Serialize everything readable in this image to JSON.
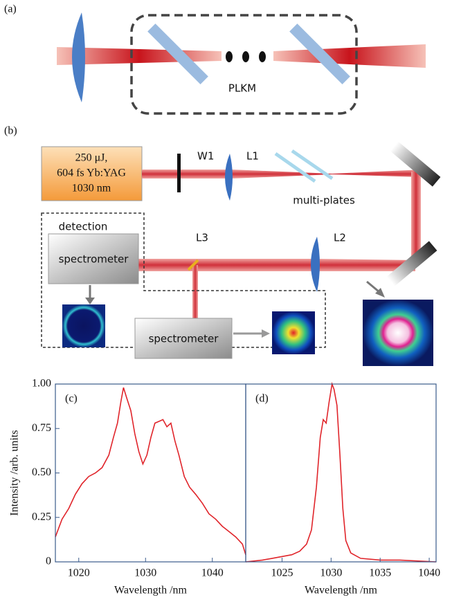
{
  "panel_a": {
    "label": "(a)",
    "box_label": "PLKM"
  },
  "panel_b": {
    "label": "(b)",
    "source": [
      "250 μJ,",
      "604 fs Yb:YAG",
      "1030 nm"
    ],
    "w1": "W1",
    "l1": "L1",
    "l2": "L2",
    "l3": "L3",
    "plates": "multi-plates",
    "detection": "detection",
    "spectrometers": [
      "spectrometer",
      "spectrometer"
    ]
  },
  "chart_data": [
    {
      "type": "line",
      "label": "(c)",
      "xlabel": "Wavelength /nm",
      "ylabel": "Intensity /arb. units",
      "x": [
        1016.5,
        1017.5,
        1018.5,
        1019.5,
        1020.5,
        1021.5,
        1022.5,
        1023.5,
        1024.5,
        1025.2,
        1025.8,
        1026.3,
        1026.7,
        1027.2,
        1027.8,
        1028.4,
        1029,
        1029.6,
        1030.2,
        1030.8,
        1031.4,
        1032,
        1032.6,
        1033.2,
        1033.8,
        1034.4,
        1035,
        1035.8,
        1036.6,
        1037.5,
        1038.5,
        1039.5,
        1040.5,
        1041.5,
        1042.5,
        1043.5,
        1044.5,
        1045
      ],
      "series": [
        {
          "color": "#e0242a",
          "values": [
            0.14,
            0.24,
            0.3,
            0.38,
            0.44,
            0.48,
            0.5,
            0.53,
            0.6,
            0.7,
            0.78,
            0.9,
            0.98,
            0.92,
            0.85,
            0.72,
            0.62,
            0.55,
            0.6,
            0.7,
            0.78,
            0.79,
            0.8,
            0.76,
            0.78,
            0.68,
            0.6,
            0.48,
            0.42,
            0.38,
            0.33,
            0.27,
            0.24,
            0.2,
            0.17,
            0.14,
            0.1,
            0.04
          ]
        }
      ],
      "xlim": [
        1016.5,
        1045
      ],
      "xticks": [
        1020,
        1030,
        1040
      ],
      "ylim": [
        0,
        1
      ],
      "yticks": [
        0,
        0.25,
        {
          "value": 0.5,
          "label": "0.50"
        },
        0.75,
        {
          "value": 1,
          "label": "1.00"
        }
      ]
    },
    {
      "type": "line",
      "label": "(d)",
      "xlabel": "Wavelength /nm",
      "x": [
        1021.3,
        1023,
        1024,
        1025,
        1026,
        1026.8,
        1027.5,
        1028,
        1028.5,
        1028.9,
        1029.2,
        1029.5,
        1029.8,
        1030.1,
        1030.3,
        1030.6,
        1030.9,
        1031.2,
        1031.5,
        1032,
        1033,
        1035,
        1037,
        1040.7
      ],
      "series": [
        {
          "color": "#e0242a",
          "values": [
            0,
            0.01,
            0.02,
            0.03,
            0.04,
            0.06,
            0.1,
            0.18,
            0.42,
            0.7,
            0.8,
            0.78,
            0.9,
            1,
            0.97,
            0.88,
            0.6,
            0.3,
            0.12,
            0.05,
            0.02,
            0.01,
            0.01,
            0
          ]
        }
      ],
      "xlim": [
        1021.3,
        1040.7
      ],
      "xticks": [
        1025,
        1030,
        1035,
        1040
      ],
      "ylim": [
        0,
        1
      ]
    }
  ]
}
